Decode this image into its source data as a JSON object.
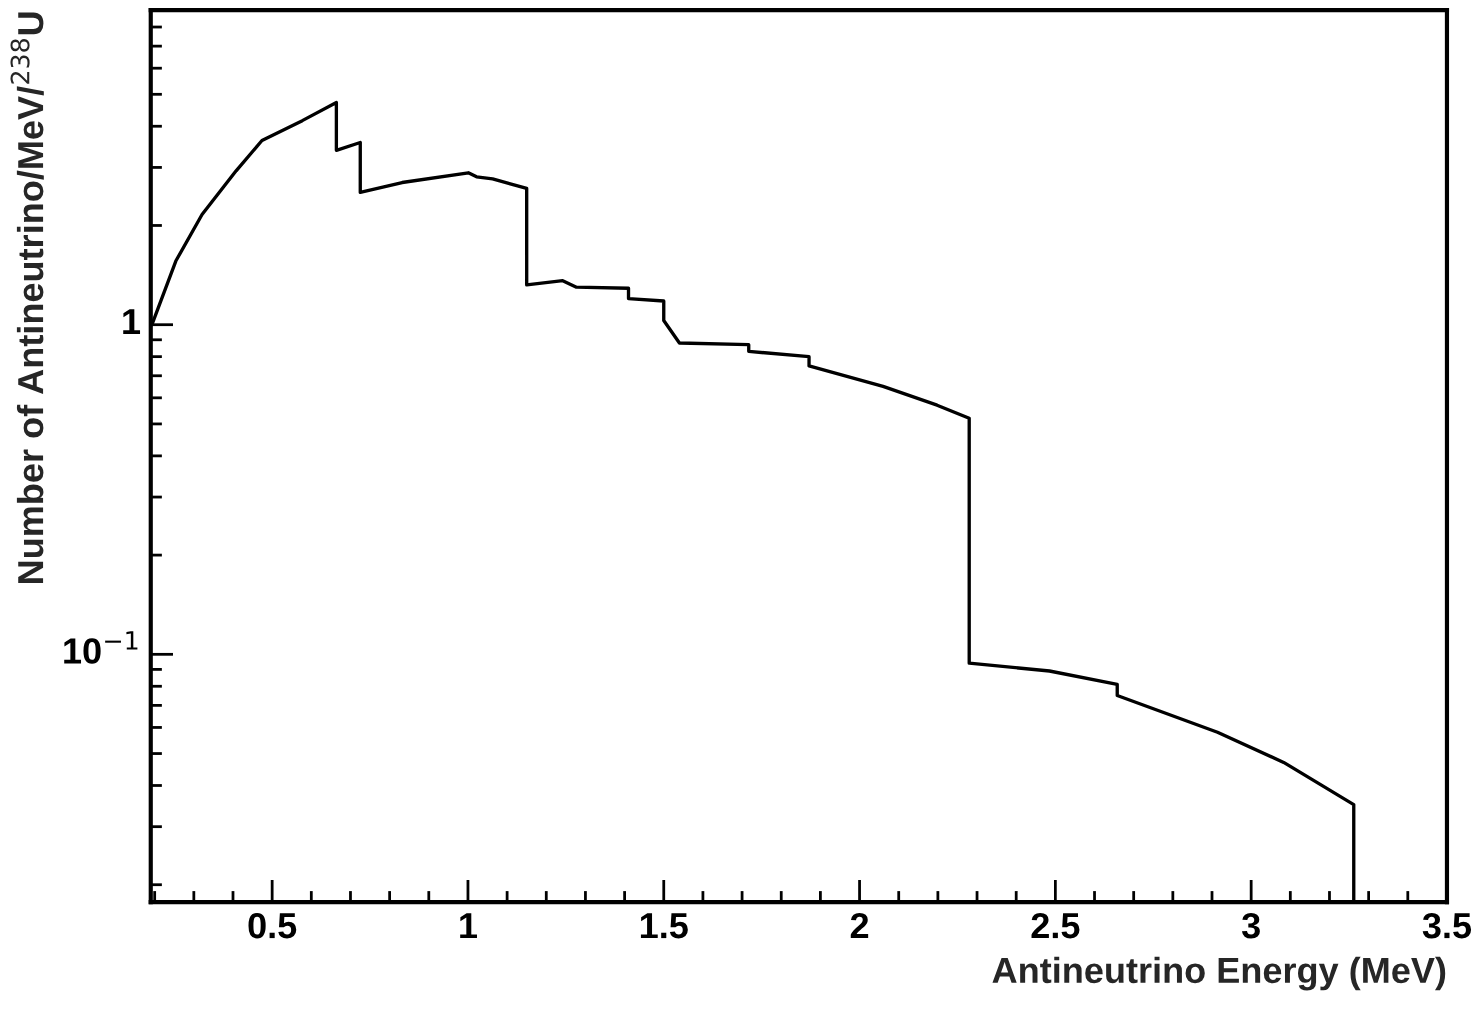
{
  "chart_data": {
    "type": "line",
    "xlabel": "Antineutrino Energy (MeV)",
    "ylabel": "Number of Antineutrino/MeV/$^{238}$U",
    "log": "y",
    "grid": false,
    "legend": false,
    "marker": "none",
    "line_style": "solid",
    "xlim": [
      0.19,
      3.5
    ],
    "xticks": [
      0.5,
      1,
      1.5,
      2,
      2.5,
      3,
      3.5
    ],
    "ylim": [
      0.0177,
      9
    ],
    "yticks": [
      {
        "value": 1,
        "label": "1"
      },
      {
        "value": 0.1,
        "label": "10$^{−1}$"
      }
    ],
    "series": [
      {
        "color": "#000000",
        "x": [
          0.193,
          0.254,
          0.321,
          0.408,
          0.474,
          0.577,
          0.664,
          0.664,
          0.725,
          0.725,
          0.832,
          1.001,
          1.022,
          1.063,
          1.15,
          1.15,
          1.242,
          1.277,
          1.41,
          1.41,
          1.5,
          1.5,
          1.54,
          1.717,
          1.717,
          1.871,
          1.871,
          2.06,
          2.198,
          2.28,
          2.28,
          2.485,
          2.658,
          2.658,
          2.914,
          3.083,
          3.262,
          3.262
        ],
        "values": [
          1.0,
          1.56,
          2.16,
          2.93,
          3.62,
          4.16,
          4.72,
          3.38,
          3.57,
          2.52,
          2.7,
          2.89,
          2.81,
          2.77,
          2.59,
          1.32,
          1.36,
          1.3,
          1.29,
          1.2,
          1.18,
          1.03,
          0.88,
          0.87,
          0.83,
          0.8,
          0.75,
          0.65,
          0.57,
          0.52,
          0.094,
          0.089,
          0.081,
          0.075,
          0.058,
          0.047,
          0.035,
          0.0177
        ]
      }
    ]
  }
}
